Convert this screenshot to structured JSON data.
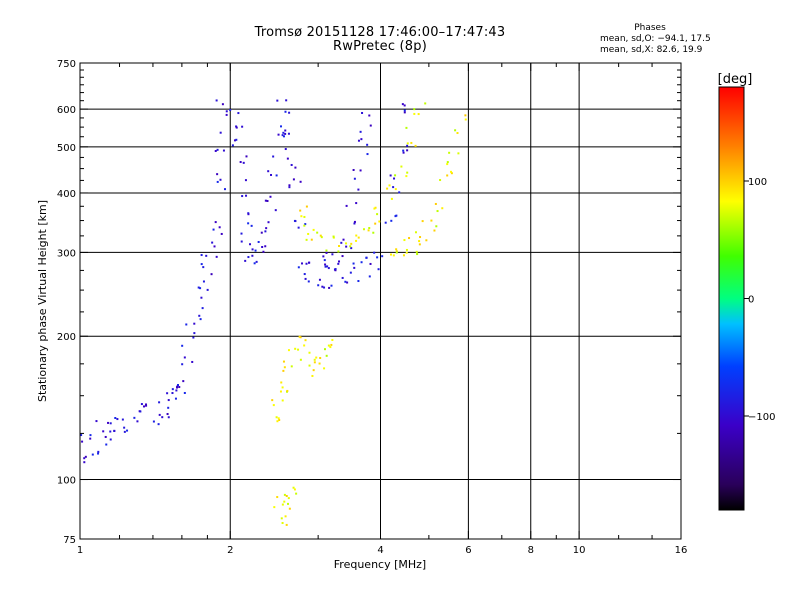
{
  "chart_data": {
    "type": "scatter",
    "title": "Tromsø 20151128 17:46:00–17:47:43",
    "subtitle": "RwPretec (8p)",
    "xlabel": "Frequency [MHz]",
    "ylabel": "Stationary phase Virtual Height [km]",
    "x_scale": "log",
    "y_scale": "log",
    "xlim": [
      1,
      16
    ],
    "ylim": [
      75,
      750
    ],
    "x_ticks": [
      1,
      2,
      4,
      6,
      8,
      10,
      16
    ],
    "x_tick_labels": [
      "1",
      "2",
      "4",
      "6",
      "8",
      "10",
      "16"
    ],
    "x_grid": [
      2,
      4,
      6,
      8,
      10
    ],
    "x_minor_ticks": [
      1.2,
      1.4,
      1.6,
      1.8,
      3,
      5,
      7,
      9,
      12,
      14
    ],
    "y_ticks": [
      75,
      100,
      200,
      300,
      400,
      500,
      600,
      750
    ],
    "y_tick_labels": [
      "75",
      "100",
      "200",
      "300",
      "400",
      "500",
      "600",
      "750"
    ],
    "y_grid": [
      100,
      200,
      300,
      400,
      500,
      600
    ],
    "y_minor_ticks": [
      125,
      150,
      175,
      225,
      250,
      275,
      325,
      350,
      375,
      425,
      450,
      475,
      525,
      550,
      575,
      625,
      650,
      675,
      700,
      725
    ],
    "grid": true,
    "legend": {
      "head": "Phases",
      "lines": [
        "mean, sd,O: −94.1, 17.5",
        "mean, sd,X:  82.6, 19.9"
      ]
    },
    "colorbar": {
      "label": "[deg]",
      "min": -180,
      "max": 180,
      "ticks": [
        100,
        0,
        -100
      ],
      "tick_labels": [
        "100",
        "0",
        "−100"
      ],
      "colormap": "rainbow"
    },
    "series": [
      {
        "mode": "O",
        "phase_deg": -94,
        "traces": [
          [
            1.0,
            118
          ],
          [
            1.03,
            115
          ],
          [
            1.06,
            117
          ],
          [
            1.1,
            125
          ],
          [
            1.15,
            128
          ],
          [
            1.2,
            132
          ],
          [
            1.25,
            130
          ],
          [
            1.3,
            136
          ],
          [
            1.36,
            140
          ],
          [
            1.42,
            138
          ],
          [
            1.48,
            143
          ],
          [
            1.52,
            145
          ],
          [
            1.56,
            150
          ],
          [
            1.6,
            160
          ],
          [
            1.64,
            180
          ],
          [
            1.68,
            205
          ],
          [
            1.72,
            230
          ],
          [
            1.76,
            260
          ],
          [
            1.8,
            280
          ],
          [
            1.84,
            300
          ],
          [
            1.88,
            340
          ],
          [
            1.9,
            420
          ],
          [
            1.92,
            520
          ],
          [
            1.93,
            600
          ],
          [
            2.05,
            580
          ],
          [
            2.08,
            520
          ],
          [
            2.1,
            450
          ],
          [
            2.12,
            380
          ],
          [
            2.15,
            330
          ],
          [
            2.2,
            300
          ],
          [
            2.25,
            300
          ],
          [
            2.3,
            310
          ],
          [
            2.35,
            340
          ],
          [
            2.4,
            380
          ],
          [
            2.45,
            450
          ],
          [
            2.5,
            520
          ],
          [
            2.55,
            600
          ],
          [
            2.6,
            560
          ],
          [
            2.65,
            480
          ],
          [
            2.7,
            420
          ],
          [
            2.75,
            330
          ],
          [
            2.8,
            285
          ],
          [
            2.9,
            270
          ],
          [
            3.0,
            262
          ],
          [
            3.2,
            262
          ],
          [
            3.4,
            268
          ],
          [
            3.6,
            272
          ],
          [
            3.8,
            278
          ],
          [
            4.0,
            290
          ],
          [
            4.2,
            340
          ],
          [
            4.3,
            420
          ],
          [
            4.4,
            500
          ],
          [
            4.45,
            580
          ],
          [
            3.1,
            280
          ],
          [
            3.2,
            285
          ],
          [
            3.3,
            300
          ],
          [
            3.4,
            320
          ],
          [
            3.5,
            360
          ],
          [
            3.6,
            430
          ],
          [
            3.7,
            500
          ],
          [
            3.75,
            560
          ]
        ]
      },
      {
        "mode": "X",
        "phase_deg": 83,
        "traces": [
          [
            2.45,
            140
          ],
          [
            2.5,
            148
          ],
          [
            2.55,
            155
          ],
          [
            2.6,
            170
          ],
          [
            2.7,
            185
          ],
          [
            2.8,
            200
          ],
          [
            2.9,
            180
          ],
          [
            3.0,
            170
          ],
          [
            3.1,
            180
          ],
          [
            3.2,
            200
          ],
          [
            2.8,
            360
          ],
          [
            2.9,
            330
          ],
          [
            3.0,
            320
          ],
          [
            3.2,
            310
          ],
          [
            3.4,
            315
          ],
          [
            3.6,
            330
          ],
          [
            3.8,
            340
          ],
          [
            4.0,
            360
          ],
          [
            4.2,
            400
          ],
          [
            4.4,
            450
          ],
          [
            4.6,
            520
          ],
          [
            4.8,
            600
          ],
          [
            4.2,
            300
          ],
          [
            4.4,
            300
          ],
          [
            4.6,
            305
          ],
          [
            4.8,
            315
          ],
          [
            5.0,
            330
          ],
          [
            5.2,
            360
          ],
          [
            5.4,
            420
          ],
          [
            5.6,
            480
          ],
          [
            5.8,
            560
          ],
          [
            2.5,
            88
          ],
          [
            2.55,
            85
          ],
          [
            2.6,
            88
          ],
          [
            2.65,
            92
          ]
        ]
      }
    ]
  }
}
